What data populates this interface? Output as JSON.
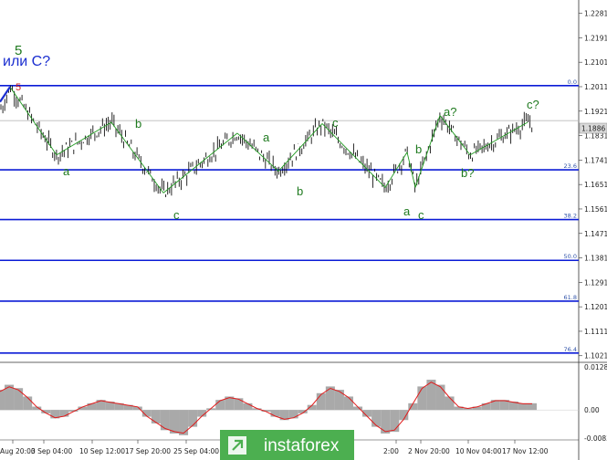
{
  "chart_data": {
    "type": "line",
    "title": "или C?",
    "price_label": "1.1886",
    "y_ticks": [
      "1.2281",
      "1.2191",
      "1.2101",
      "1.2011",
      "1.1921",
      "1.1831",
      "1.1741",
      "1.1651",
      "1.1561",
      "1.1471",
      "1.1381",
      "1.1291",
      "1.1201",
      "1.1111",
      "1.1021"
    ],
    "ylim": [
      1.1,
      1.233
    ],
    "fib_levels": [
      {
        "label": "0.0",
        "value": 1.2015
      },
      {
        "label": "23.6",
        "value": 1.1705
      },
      {
        "label": "38.2",
        "value": 1.1522
      },
      {
        "label": "50.0",
        "value": 1.1372
      },
      {
        "label": "61.8",
        "value": 1.1222
      },
      {
        "label": "76.4",
        "value": 1.1031
      }
    ],
    "x_ticks": [
      "Aug 20:00",
      "3 Sep 04:00",
      "10 Sep 12:00",
      "17 Sep 20:00",
      "25 Sep 04:00",
      "2",
      "2:00",
      "2 Nov 20:00",
      "10 Nov 04:00",
      "17 Nov 12:00"
    ],
    "wave_path": [
      {
        "x": 0,
        "y": 1.193
      },
      {
        "x": 0.15,
        "y": 1.201
      },
      {
        "x": 1.0,
        "y": 1.176
      },
      {
        "x": 2.0,
        "y": 1.188
      },
      {
        "x": 2.95,
        "y": 1.162
      },
      {
        "x": 4.3,
        "y": 1.184
      },
      {
        "x": 5.05,
        "y": 1.17
      },
      {
        "x": 5.85,
        "y": 1.1875
      },
      {
        "x": 7.0,
        "y": 1.164
      },
      {
        "x": 7.4,
        "y": 1.177
      },
      {
        "x": 7.55,
        "y": 1.164
      },
      {
        "x": 8.0,
        "y": 1.1905
      },
      {
        "x": 8.55,
        "y": 1.176
      },
      {
        "x": 9.6,
        "y": 1.188
      }
    ],
    "oscillator": {
      "ylim": [
        -0.00836,
        0.01281
      ],
      "y_ticks": [
        "0.01281",
        "0.00",
        "-0.00836"
      ],
      "values": [
        0.006,
        0.0075,
        0.0065,
        0.004,
        0.001,
        -0.001,
        -0.0025,
        -0.002,
        -0.0005,
        0.001,
        0.002,
        0.003,
        0.0025,
        0.002,
        0.0015,
        0.001,
        -0.002,
        -0.004,
        -0.006,
        -0.007,
        -0.0075,
        -0.005,
        -0.002,
        0.0005,
        0.003,
        0.004,
        0.0035,
        0.002,
        0.0005,
        -0.0005,
        -0.002,
        -0.003,
        -0.0025,
        -0.001,
        0.0015,
        0.005,
        0.007,
        0.006,
        0.004,
        0.001,
        -0.002,
        -0.005,
        -0.007,
        -0.0065,
        -0.003,
        0.002,
        0.007,
        0.009,
        0.0075,
        0.004,
        0.001,
        0.0005,
        0.001,
        0.002,
        0.003,
        0.003,
        0.0025,
        0.002,
        0.002
      ]
    }
  },
  "labels": {
    "wave_5": "5",
    "wave_5_top": "5",
    "a1": "a",
    "b1": "b",
    "c1": "c",
    "a2": "a",
    "b2": "b",
    "c2": "c",
    "b3": "b",
    "a3": "a",
    "c3": "c",
    "a4": "a?",
    "b4": "b?",
    "c4": "c?"
  },
  "watermark": "instaforex",
  "colors": {
    "level": "#0b1bd6",
    "wave": "#1f9a1f",
    "osc_line": "#e01a1a",
    "osc_bar": "#a9a9a9",
    "wm_bg": "#4caf50"
  }
}
